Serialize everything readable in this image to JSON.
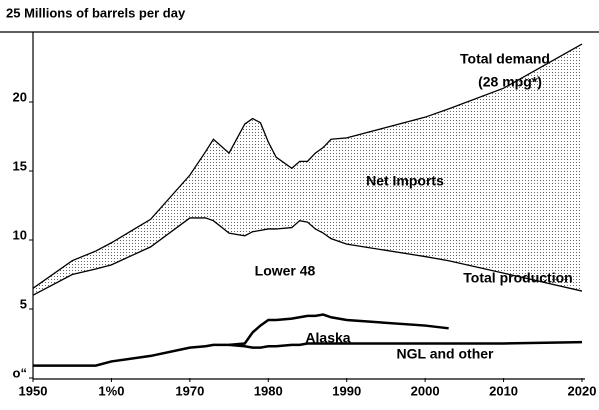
{
  "chart_data": {
    "type": "line",
    "title": "25 Millions of barrels per day",
    "x": [
      1950,
      1955,
      1958,
      1960,
      1965,
      1970,
      1972,
      1973,
      1975,
      1977,
      1978,
      1979,
      1980,
      1981,
      1983,
      1984,
      1985,
      1986,
      1987,
      1988,
      1990,
      2000,
      2003,
      2010,
      2020
    ],
    "series": [
      {
        "name": "Total demand",
        "color": "#000000",
        "values": [
          6.5,
          8.5,
          9.2,
          9.8,
          11.5,
          14.7,
          16.4,
          17.3,
          16.3,
          18.4,
          18.8,
          18.5,
          17.1,
          16.0,
          15.2,
          15.7,
          15.7,
          16.3,
          16.7,
          17.3,
          17.4,
          18.9,
          19.5,
          21.0,
          24.2
        ]
      },
      {
        "name": "Total production",
        "color": "#000000",
        "values": [
          6.0,
          7.5,
          7.9,
          8.2,
          9.5,
          11.6,
          11.6,
          11.4,
          10.5,
          10.3,
          10.6,
          10.7,
          10.8,
          10.8,
          10.9,
          11.4,
          11.3,
          10.8,
          10.5,
          10.1,
          9.7,
          8.8,
          8.5,
          7.6,
          6.3
        ]
      },
      {
        "name": "Alaska",
        "color": "#000000",
        "values": [
          null,
          null,
          null,
          null,
          null,
          null,
          null,
          null,
          2.4,
          2.5,
          3.3,
          3.8,
          4.2,
          4.2,
          4.3,
          4.4,
          4.5,
          4.5,
          4.6,
          4.4,
          4.2,
          3.8,
          3.6,
          null,
          null
        ]
      },
      {
        "name": "NGL and other",
        "color": "#000000",
        "values": [
          0.9,
          0.9,
          0.9,
          1.2,
          1.6,
          2.2,
          2.3,
          2.4,
          2.4,
          2.3,
          2.2,
          2.2,
          2.3,
          2.3,
          2.4,
          2.4,
          2.5,
          2.5,
          2.5,
          2.5,
          2.5,
          2.5,
          2.5,
          2.5,
          2.6
        ]
      }
    ],
    "annotations": [
      "(28 mpg*)",
      "Net Imports",
      "Lower 48"
    ],
    "xlim": [
      1950,
      2020
    ],
    "xticks": [
      1950,
      {
        "value": 1960,
        "label": "1%0"
      },
      1970,
      1980,
      1990,
      2000,
      2010,
      2020
    ],
    "ylim": [
      0,
      25
    ],
    "yticks": [
      {
        "value": 0,
        "label": "o“"
      },
      5,
      10,
      15,
      20
    ]
  }
}
